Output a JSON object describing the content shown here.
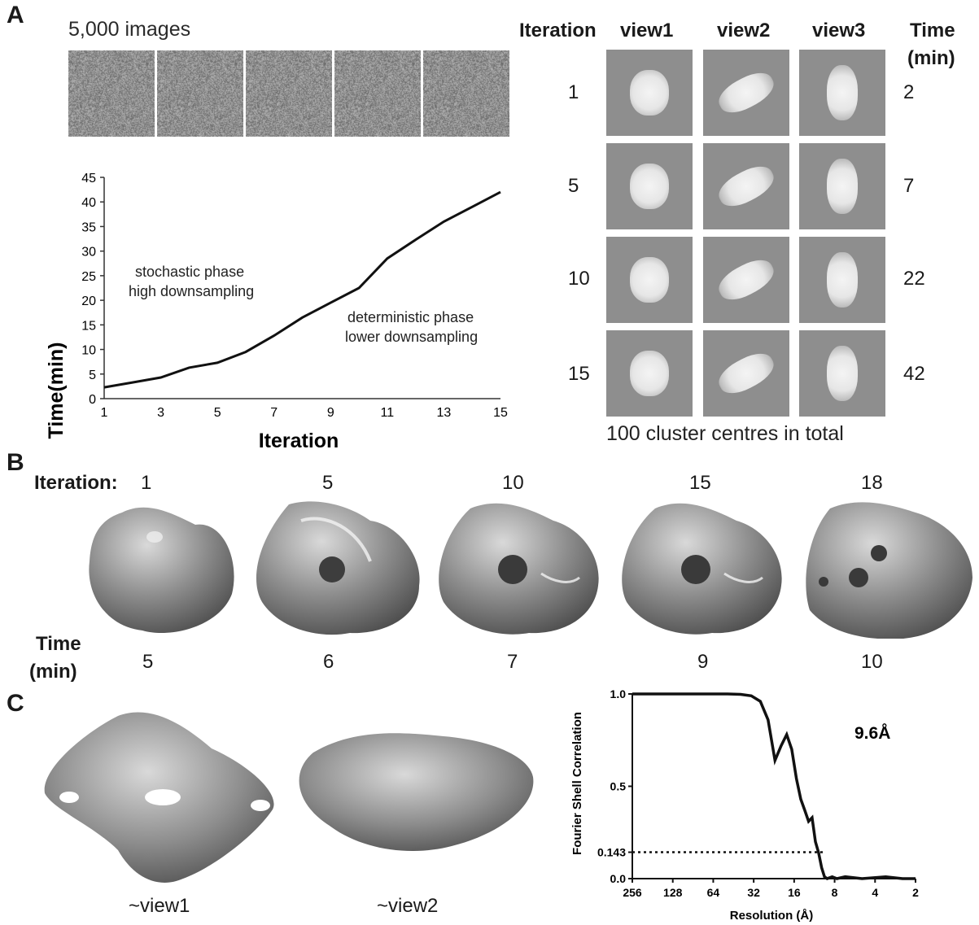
{
  "panelA": {
    "letter": "A",
    "images_caption": "5,000 images",
    "chart_data": {
      "type": "line",
      "x": [
        1,
        2,
        3,
        4,
        5,
        6,
        7,
        8,
        9,
        10,
        11,
        12,
        13,
        14,
        15
      ],
      "y": [
        2.3,
        3.3,
        4.3,
        6.3,
        7.3,
        9.5,
        12.8,
        16.5,
        19.5,
        22.5,
        28.5,
        32.3,
        36,
        39,
        42
      ],
      "xlabel": "Iteration",
      "ylabel": "Time(min)",
      "xlim": [
        1,
        15
      ],
      "ylim": [
        0,
        45
      ],
      "xticks": [
        "1",
        "3",
        "5",
        "7",
        "9",
        "11",
        "13",
        "15"
      ],
      "yticks": [
        "0",
        "5",
        "10",
        "15",
        "20",
        "25",
        "30",
        "35",
        "40",
        "45"
      ],
      "annotations": [
        {
          "line1": "stochastic phase",
          "line2": "high downsampling"
        },
        {
          "line1": "deterministic phase",
          "line2": "lower downsampling"
        }
      ],
      "grid": false
    },
    "grid_headers": {
      "iteration": "Iteration",
      "views": [
        "view1",
        "view2",
        "view3"
      ],
      "time_line1": "Time",
      "time_line2": "(min)"
    },
    "grid_rows": [
      {
        "iteration": "1",
        "time": "2"
      },
      {
        "iteration": "5",
        "time": "7"
      },
      {
        "iteration": "10",
        "time": "22"
      },
      {
        "iteration": "15",
        "time": "42"
      }
    ],
    "grid_caption": "100 cluster centres in total"
  },
  "panelB": {
    "letter": "B",
    "iteration_label": "Iteration:",
    "time_label_line1": "Time",
    "time_label_line2": "(min)",
    "maps": [
      {
        "iteration": "1",
        "time": "5"
      },
      {
        "iteration": "5",
        "time": "6"
      },
      {
        "iteration": "10",
        "time": "7"
      },
      {
        "iteration": "15",
        "time": "9"
      },
      {
        "iteration": "18",
        "time": "10"
      }
    ]
  },
  "panelC": {
    "letter": "C",
    "view_labels": [
      "~view1",
      "~view2"
    ],
    "fsc_chart": {
      "chart_data": {
        "type": "line",
        "xlabel": "Resolution (Å)",
        "ylabel": "Fourier Shell Correlation",
        "xticks": [
          "256",
          "128",
          "64",
          "32",
          "16",
          "8",
          "4",
          "2"
        ],
        "yticks": [
          "0.0",
          "0.143",
          "0.5",
          "1.0"
        ],
        "ylim": [
          0,
          1
        ],
        "threshold": 0.143,
        "resolution_label": "9.6Å",
        "x_spatial_freq": [
          0,
          0.01,
          0.02,
          0.025,
          0.03,
          0.035,
          0.04,
          0.045,
          0.05,
          0.055,
          0.06,
          0.065,
          0.07,
          0.075,
          0.08,
          0.085,
          0.09,
          0.095,
          0.1,
          0.105,
          0.11,
          0.12,
          0.13,
          0.15,
          0.2,
          0.3,
          0.4,
          0.5
        ],
        "y": [
          1.0,
          1.0,
          1.0,
          0.998,
          0.99,
          0.96,
          0.86,
          0.64,
          0.72,
          0.78,
          0.7,
          0.54,
          0.43,
          0.37,
          0.31,
          0.33,
          0.2,
          0.14,
          0.06,
          0.01,
          0.0,
          0.01,
          0.0,
          0.01,
          0.0,
          0.01,
          0.0,
          0.0
        ]
      }
    }
  }
}
